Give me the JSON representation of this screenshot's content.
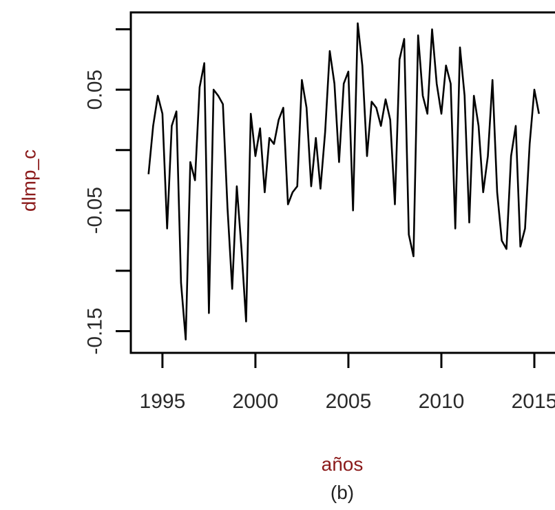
{
  "chart_data": {
    "type": "line",
    "xlabel": "años",
    "ylabel": "dlmp_c",
    "caption": "(b)",
    "xlim": [
      1993.3,
      2017.0
    ],
    "ylim": [
      -0.168,
      0.114
    ],
    "x_ticks": [
      1995,
      2000,
      2005,
      2010,
      2015
    ],
    "x_tick_labels": [
      "1995",
      "2000",
      "2005",
      "2010",
      "2015"
    ],
    "y_ticks": [
      -0.15,
      -0.1,
      -0.05,
      0.0,
      0.05,
      0.1
    ],
    "y_tick_labels": [
      "-0.15",
      "",
      "-0.05",
      "",
      "0.05",
      ""
    ],
    "grid": false,
    "legend": "none",
    "colors": {
      "line": "#000000",
      "axis": "#000000",
      "label": "#8b1a1a",
      "tick_label": "#2a2a2a"
    },
    "series": [
      {
        "x_start": 1994.25,
        "x_step": 0.25,
        "values": [
          -0.02,
          0.02,
          0.045,
          0.03,
          -0.065,
          0.02,
          0.032,
          -0.11,
          -0.157,
          -0.01,
          -0.025,
          0.052,
          0.072,
          -0.135,
          0.05,
          0.045,
          0.038,
          -0.048,
          -0.115,
          -0.03,
          -0.082,
          -0.142,
          0.03,
          -0.005,
          0.018,
          -0.035,
          0.01,
          0.005,
          0.025,
          0.035,
          -0.045,
          -0.035,
          -0.03,
          0.058,
          0.035,
          -0.03,
          0.01,
          -0.032,
          0.015,
          0.082,
          0.055,
          -0.01,
          0.055,
          0.065,
          -0.05,
          0.105,
          0.07,
          -0.005,
          0.04,
          0.035,
          0.02,
          0.042,
          0.025,
          -0.045,
          0.075,
          0.092,
          -0.07,
          -0.088,
          0.095,
          0.045,
          0.03,
          0.1,
          0.055,
          0.03,
          0.07,
          0.055,
          -0.065,
          0.085,
          0.045,
          -0.06,
          0.045,
          0.02,
          -0.035,
          -0.005,
          0.058,
          -0.035,
          -0.075,
          -0.082,
          -0.005,
          0.02,
          -0.08,
          -0.065,
          0.005,
          0.05,
          0.03
        ]
      }
    ]
  }
}
